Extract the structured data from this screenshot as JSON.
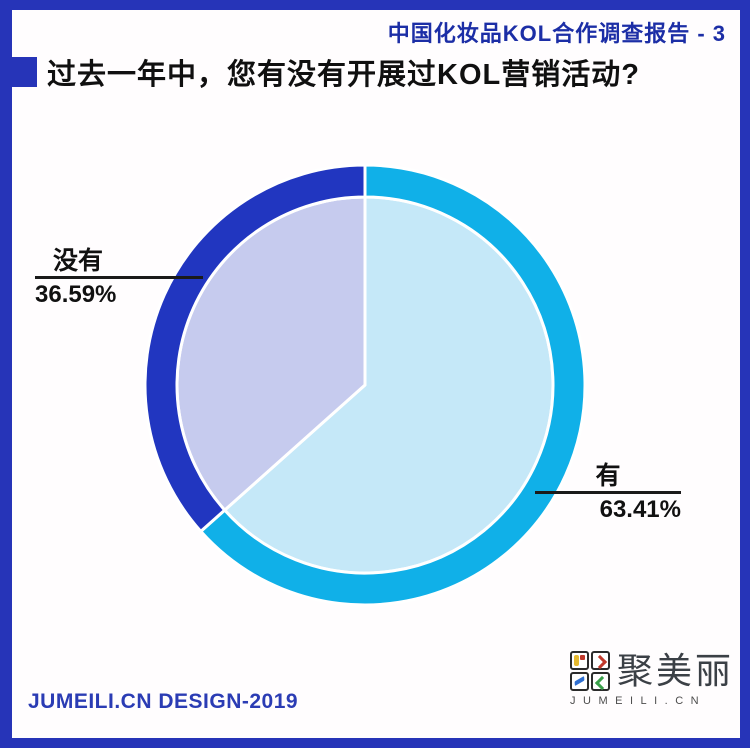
{
  "theme": {
    "frame-color": "#2634b8",
    "header-text": "#1c2ea6",
    "title-text": "#101010",
    "callout-text": "#111111",
    "line-color": "#1a1a1a",
    "footer-text": "#2b3cb4",
    "logo-text": "#3b4046",
    "logo-sub": "#4d4d4d",
    "logo-border": "#2b2b2b",
    "logo-yellow": "#e6b92e",
    "logo-red": "#c0392b",
    "logo-blue": "#2f6fd0",
    "logo-green": "#3aa04a"
  },
  "header": {
    "report_title": "中国化妆品KOL合作调查报告 - 3"
  },
  "question": {
    "title": "过去一年中，您有没有开展过KOL营销活动?"
  },
  "chart_data": {
    "type": "pie",
    "title": "过去一年中，您有没有开展过KOL营销活动?",
    "slices": [
      {
        "label": "有",
        "value": 63.41,
        "pct_text": "63.41%",
        "fill": "#c5e8f8",
        "ring": "#10b0e8"
      },
      {
        "label": "没有",
        "value": 36.59,
        "pct_text": "36.59%",
        "fill": "#c6cbee",
        "ring": "#2136c0"
      }
    ],
    "start_angle_deg": 0,
    "direction": "clockwise",
    "center": [
      365,
      385
    ],
    "outer_radius": 220,
    "ring_thickness": 32,
    "separator_color": "#ffffff",
    "legend": "none",
    "labels_style": "callouts with leader lines"
  },
  "footer": {
    "credit": "JUMEILI.CN DESIGN-2019"
  },
  "logo": {
    "name": "聚美丽",
    "domain": "JUMEILI.CN"
  }
}
